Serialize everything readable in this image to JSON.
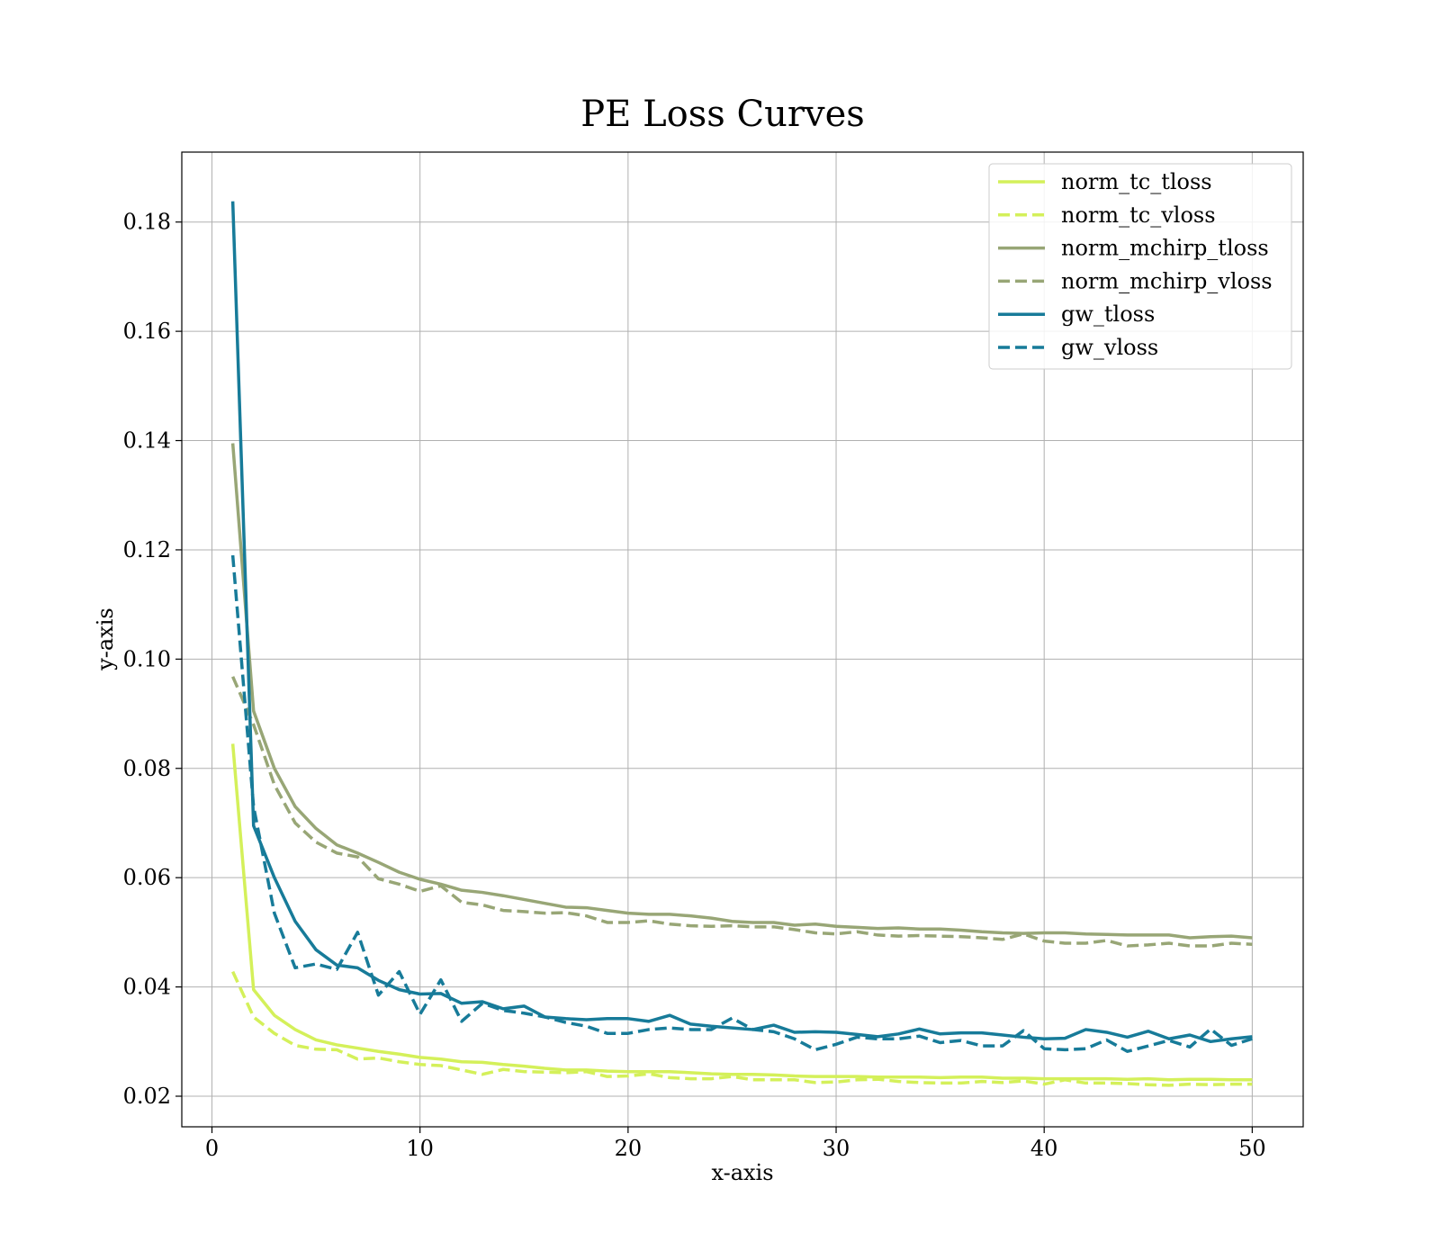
{
  "chart_data": {
    "type": "line",
    "title": "PE Loss Curves",
    "xlabel": "x-axis",
    "ylabel": "y-axis",
    "xlim": [
      -1.45,
      52.45
    ],
    "ylim": [
      0.0144,
      0.1928
    ],
    "xticks": [
      0,
      10,
      20,
      30,
      40,
      50
    ],
    "yticks": [
      0.02,
      0.04,
      0.06,
      0.08,
      0.1,
      0.12,
      0.14,
      0.16,
      0.18
    ],
    "xtick_labels": [
      "0",
      "10",
      "20",
      "30",
      "40",
      "50"
    ],
    "ytick_labels": [
      "0.02",
      "0.04",
      "0.06",
      "0.08",
      "0.10",
      "0.12",
      "0.14",
      "0.16",
      "0.18"
    ],
    "grid": true,
    "legend_position": "top-right",
    "x": [
      1,
      2,
      3,
      4,
      5,
      6,
      7,
      8,
      9,
      10,
      11,
      12,
      13,
      14,
      15,
      16,
      17,
      18,
      19,
      20,
      21,
      22,
      23,
      24,
      25,
      26,
      27,
      28,
      29,
      30,
      31,
      32,
      33,
      34,
      35,
      36,
      37,
      38,
      39,
      40,
      41,
      42,
      43,
      44,
      45,
      46,
      47,
      48,
      49,
      50
    ],
    "series": [
      {
        "name": "norm_tc_tloss",
        "color": "#d4f05a",
        "dash": "solid",
        "values": [
          0.0845,
          0.0395,
          0.0348,
          0.0322,
          0.0303,
          0.0294,
          0.0288,
          0.0282,
          0.0277,
          0.0271,
          0.0268,
          0.0263,
          0.0262,
          0.0258,
          0.0255,
          0.0251,
          0.0248,
          0.0248,
          0.0246,
          0.0245,
          0.0245,
          0.0245,
          0.0243,
          0.0241,
          0.024,
          0.024,
          0.0239,
          0.0237,
          0.0236,
          0.0236,
          0.0236,
          0.0235,
          0.0235,
          0.0235,
          0.0234,
          0.0235,
          0.0235,
          0.0233,
          0.0233,
          0.0232,
          0.0232,
          0.0232,
          0.0232,
          0.0231,
          0.0232,
          0.023,
          0.0231,
          0.0231,
          0.023,
          0.023
        ]
      },
      {
        "name": "norm_tc_vloss",
        "color": "#d4f05a",
        "dash": "dashed",
        "values": [
          0.0428,
          0.0345,
          0.0315,
          0.0293,
          0.0286,
          0.0285,
          0.0268,
          0.027,
          0.0263,
          0.0258,
          0.0256,
          0.0248,
          0.024,
          0.0249,
          0.0245,
          0.0244,
          0.0243,
          0.0245,
          0.0236,
          0.0237,
          0.0241,
          0.0234,
          0.0232,
          0.0232,
          0.0236,
          0.023,
          0.023,
          0.023,
          0.0225,
          0.0226,
          0.023,
          0.0231,
          0.0227,
          0.0225,
          0.0224,
          0.0224,
          0.0227,
          0.0225,
          0.0228,
          0.0222,
          0.023,
          0.0224,
          0.0224,
          0.0223,
          0.0221,
          0.022,
          0.0222,
          0.0221,
          0.0222,
          0.0222
        ]
      },
      {
        "name": "norm_mchirp_tloss",
        "color": "#98a676",
        "dash": "solid",
        "values": [
          0.1395,
          0.0905,
          0.08,
          0.073,
          0.069,
          0.066,
          0.0645,
          0.0628,
          0.061,
          0.0597,
          0.0588,
          0.0577,
          0.0573,
          0.0567,
          0.056,
          0.0553,
          0.0546,
          0.0545,
          0.054,
          0.0535,
          0.0533,
          0.0533,
          0.053,
          0.0526,
          0.052,
          0.0518,
          0.0518,
          0.0513,
          0.0515,
          0.0511,
          0.0509,
          0.0507,
          0.0508,
          0.0506,
          0.0506,
          0.0504,
          0.0501,
          0.0499,
          0.0498,
          0.0499,
          0.0499,
          0.0497,
          0.0496,
          0.0495,
          0.0495,
          0.0495,
          0.049,
          0.0492,
          0.0493,
          0.049
        ]
      },
      {
        "name": "norm_mchirp_vloss",
        "color": "#98a676",
        "dash": "dashed",
        "values": [
          0.0968,
          0.088,
          0.077,
          0.07,
          0.0665,
          0.0645,
          0.0638,
          0.0598,
          0.0588,
          0.0575,
          0.0585,
          0.0555,
          0.055,
          0.054,
          0.0538,
          0.0535,
          0.0536,
          0.053,
          0.0518,
          0.0518,
          0.0521,
          0.0515,
          0.0512,
          0.0511,
          0.0512,
          0.051,
          0.051,
          0.0505,
          0.0499,
          0.0497,
          0.0501,
          0.0495,
          0.0493,
          0.0494,
          0.0493,
          0.0492,
          0.049,
          0.0487,
          0.0497,
          0.0484,
          0.048,
          0.048,
          0.0485,
          0.0475,
          0.0477,
          0.048,
          0.0475,
          0.0475,
          0.048,
          0.0478
        ]
      },
      {
        "name": "gw_tloss",
        "color": "#177b99",
        "dash": "solid",
        "values": [
          0.1838,
          0.0695,
          0.06,
          0.052,
          0.0468,
          0.044,
          0.0435,
          0.0412,
          0.0395,
          0.0387,
          0.0388,
          0.037,
          0.0373,
          0.036,
          0.0365,
          0.0345,
          0.0342,
          0.034,
          0.0342,
          0.0342,
          0.0337,
          0.0348,
          0.0332,
          0.0328,
          0.0325,
          0.0322,
          0.033,
          0.0317,
          0.0318,
          0.0317,
          0.0313,
          0.0309,
          0.0314,
          0.0323,
          0.0314,
          0.0316,
          0.0316,
          0.0312,
          0.0308,
          0.0305,
          0.0306,
          0.0322,
          0.0317,
          0.0308,
          0.0319,
          0.0305,
          0.0312,
          0.03,
          0.0305,
          0.0309
        ]
      },
      {
        "name": "gw_vloss",
        "color": "#177b99",
        "dash": "dashed",
        "values": [
          0.119,
          0.073,
          0.0535,
          0.0435,
          0.0442,
          0.0432,
          0.05,
          0.0385,
          0.0428,
          0.035,
          0.0413,
          0.0337,
          0.037,
          0.0357,
          0.0352,
          0.0345,
          0.0335,
          0.0328,
          0.0315,
          0.0315,
          0.0322,
          0.0325,
          0.0322,
          0.0322,
          0.0343,
          0.0322,
          0.0318,
          0.0305,
          0.0285,
          0.0295,
          0.0308,
          0.0305,
          0.0305,
          0.031,
          0.0298,
          0.0302,
          0.0292,
          0.0292,
          0.032,
          0.0287,
          0.0285,
          0.0287,
          0.0303,
          0.0282,
          0.0292,
          0.0302,
          0.029,
          0.0323,
          0.0293,
          0.0305
        ]
      }
    ]
  }
}
